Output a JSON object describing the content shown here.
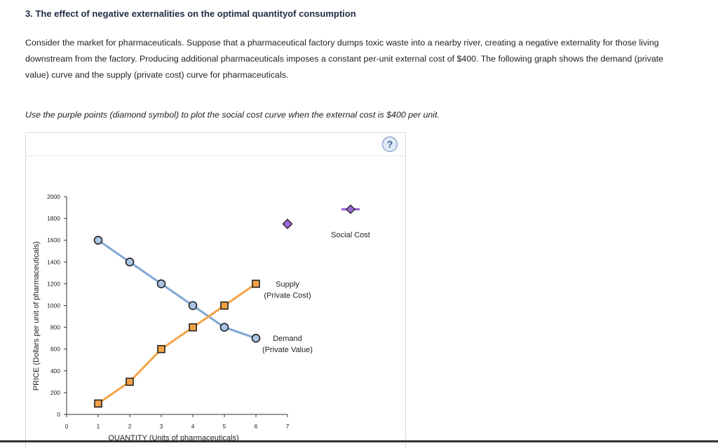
{
  "question": {
    "title": "3. The effect of negative externalities on the optimal quantityof consumption",
    "intro": "Consider the market for pharmaceuticals. Suppose that a pharmaceutical factory dumps toxic waste into a nearby river, creating a negative externality for those living downstream from the factory. Producing additional pharmaceuticals imposes a constant per-unit external cost of $400. The following graph shows the demand (private value) curve and the supply (private cost) curve for pharmaceuticals.",
    "instruction": "Use the purple points (diamond symbol) to plot the social cost curve when the external cost is $400 per unit."
  },
  "help": {
    "label": "?"
  },
  "colors": {
    "demand": "#7fa7d6",
    "demand_fill": "#a9c4e6",
    "supply": "#f5a246",
    "supply_fill": "#f5a246",
    "social": "#8f5ccb",
    "social_fill": "#9b6ad6",
    "axis": "#333333"
  },
  "chart_data": {
    "type": "line",
    "title": "",
    "xlabel": "QUANTITY (Units of pharmaceuticals)",
    "ylabel": "PRICE (Dollars per unit of pharmaceuticals)",
    "xlim": [
      0,
      7
    ],
    "ylim": [
      0,
      2000
    ],
    "x_ticks": [
      0,
      1,
      2,
      3,
      4,
      5,
      6,
      7
    ],
    "y_ticks": [
      0,
      200,
      400,
      600,
      800,
      1000,
      1200,
      1400,
      1600,
      1800,
      2000
    ],
    "series": [
      {
        "name": "Demand (Private Value)",
        "label_lines": [
          "Demand",
          "(Private Value)"
        ],
        "marker": "circle",
        "x": [
          1,
          2,
          3,
          4,
          5,
          6
        ],
        "y": [
          1600,
          1400,
          1200,
          1000,
          800,
          700
        ]
      },
      {
        "name": "Supply (Private Cost)",
        "label_lines": [
          "Supply",
          "(Private Cost)"
        ],
        "marker": "square",
        "x": [
          1,
          2,
          3,
          4,
          5,
          6
        ],
        "y": [
          100,
          300,
          600,
          800,
          1000,
          1200
        ]
      }
    ],
    "tool": {
      "name": "Social Cost",
      "marker": "diamond",
      "unplaced_point": {
        "x": 7,
        "y": 1750
      }
    }
  }
}
